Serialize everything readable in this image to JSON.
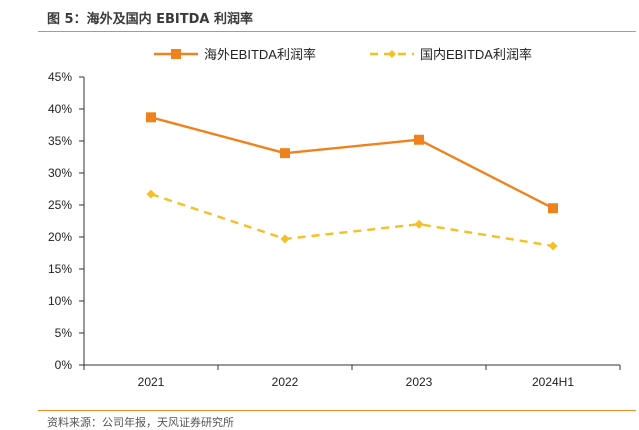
{
  "figure": {
    "title": "图 5：海外及国内 EBITDA 利润率",
    "source": "资料来源：公司年报，天风证券研究所"
  },
  "chart_data": {
    "type": "line",
    "categories": [
      "2021",
      "2022",
      "2023",
      "2024H1"
    ],
    "series": [
      {
        "name": "海外EBITDA利润率",
        "values": [
          38.7,
          33.1,
          35.2,
          24.5
        ],
        "color": "#f0821e",
        "style": "solid",
        "marker": "square"
      },
      {
        "name": "国内EBITDA利润率",
        "values": [
          26.7,
          19.7,
          22.0,
          18.6
        ],
        "color": "#f5bf26",
        "style": "dashed",
        "marker": "diamond"
      }
    ],
    "y_ticks": [
      "0%",
      "5%",
      "10%",
      "15%",
      "20%",
      "25%",
      "30%",
      "35%",
      "40%",
      "45%"
    ],
    "ylim": [
      0,
      45
    ],
    "y_unit": "%",
    "legend_position": "top",
    "grid": false
  }
}
